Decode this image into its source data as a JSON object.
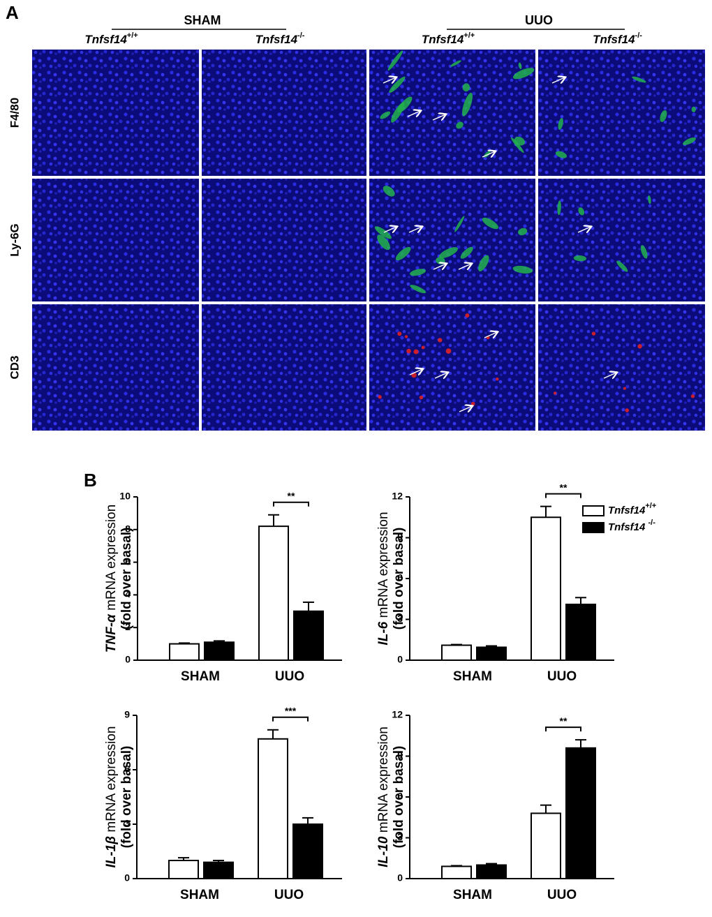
{
  "panel_a": {
    "label": "A",
    "groups": [
      {
        "label": "SHAM"
      },
      {
        "label": "UUO"
      }
    ],
    "columns": [
      {
        "base": "Tnfsf14",
        "sup": "+/+"
      },
      {
        "base": "Tnfsf14",
        "sup": "-/-"
      },
      {
        "base": "Tnfsf14",
        "sup": "+/+"
      },
      {
        "base": "Tnfsf14",
        "sup": "-/-"
      }
    ],
    "rows": [
      {
        "label": "F4/80",
        "color": "#22b14c"
      },
      {
        "label": "Ly-6G",
        "color": "#22b14c"
      },
      {
        "label": "CD3",
        "color": "#e02020"
      }
    ]
  },
  "panel_b": {
    "label": "B"
  },
  "chart_data": [
    {
      "type": "bar",
      "ylabel": {
        "gene": "TNF-α",
        "text": "mRNA expression",
        "sub": "(fold over basal)"
      },
      "categories": [
        "SHAM",
        "UUO"
      ],
      "series": [
        {
          "color": "#ffffff",
          "values": [
            1.0,
            8.2
          ],
          "errors": [
            0.05,
            0.7
          ]
        },
        {
          "color": "#000000",
          "values": [
            1.1,
            3.0
          ],
          "errors": [
            0.08,
            0.55
          ]
        }
      ],
      "significance": [
        null,
        "**"
      ],
      "ylim": [
        0,
        10
      ],
      "yticks": [
        0,
        2,
        4,
        6,
        8,
        10
      ]
    },
    {
      "type": "bar",
      "ylabel": {
        "gene": "IL-6",
        "text": "mRNA expression",
        "sub": "(fold over basal)"
      },
      "categories": [
        "SHAM",
        "UUO"
      ],
      "series": [
        {
          "name": "Tnfsf14",
          "name_sup": "+/+",
          "color": "#ffffff",
          "values": [
            1.1,
            10.5
          ],
          "errors": [
            0.05,
            0.8
          ]
        },
        {
          "name": "Tnfsf14 ",
          "name_sup": "-/-",
          "color": "#000000",
          "values": [
            0.95,
            4.1
          ],
          "errors": [
            0.1,
            0.5
          ]
        }
      ],
      "significance": [
        null,
        "**"
      ],
      "legend": "upper right",
      "ylim": [
        0,
        12
      ],
      "yticks": [
        0,
        3,
        6,
        9,
        12
      ]
    },
    {
      "type": "bar",
      "ylabel": {
        "gene": "IL-1β",
        "text": "mRNA expression",
        "sub": "(fold over basal)"
      },
      "categories": [
        "SHAM",
        "UUO"
      ],
      "series": [
        {
          "color": "#ffffff",
          "values": [
            1.0,
            7.7
          ],
          "errors": [
            0.15,
            0.5
          ]
        },
        {
          "color": "#000000",
          "values": [
            0.9,
            3.0
          ],
          "errors": [
            0.1,
            0.35
          ]
        }
      ],
      "significance": [
        null,
        "***"
      ],
      "ylim": [
        0,
        9
      ],
      "yticks": [
        0,
        3,
        6,
        9
      ]
    },
    {
      "type": "bar",
      "ylabel": {
        "gene": "IL-10",
        "text": "mRNA expression",
        "sub": "(fold over basal)"
      },
      "categories": [
        "SHAM",
        "UUO"
      ],
      "series": [
        {
          "color": "#ffffff",
          "values": [
            0.9,
            4.8
          ],
          "errors": [
            0.05,
            0.6
          ]
        },
        {
          "color": "#000000",
          "values": [
            1.0,
            9.6
          ],
          "errors": [
            0.1,
            0.6
          ]
        }
      ],
      "significance": [
        null,
        "**"
      ],
      "ylim": [
        0,
        12
      ],
      "yticks": [
        0,
        3,
        6,
        9,
        12
      ]
    }
  ]
}
